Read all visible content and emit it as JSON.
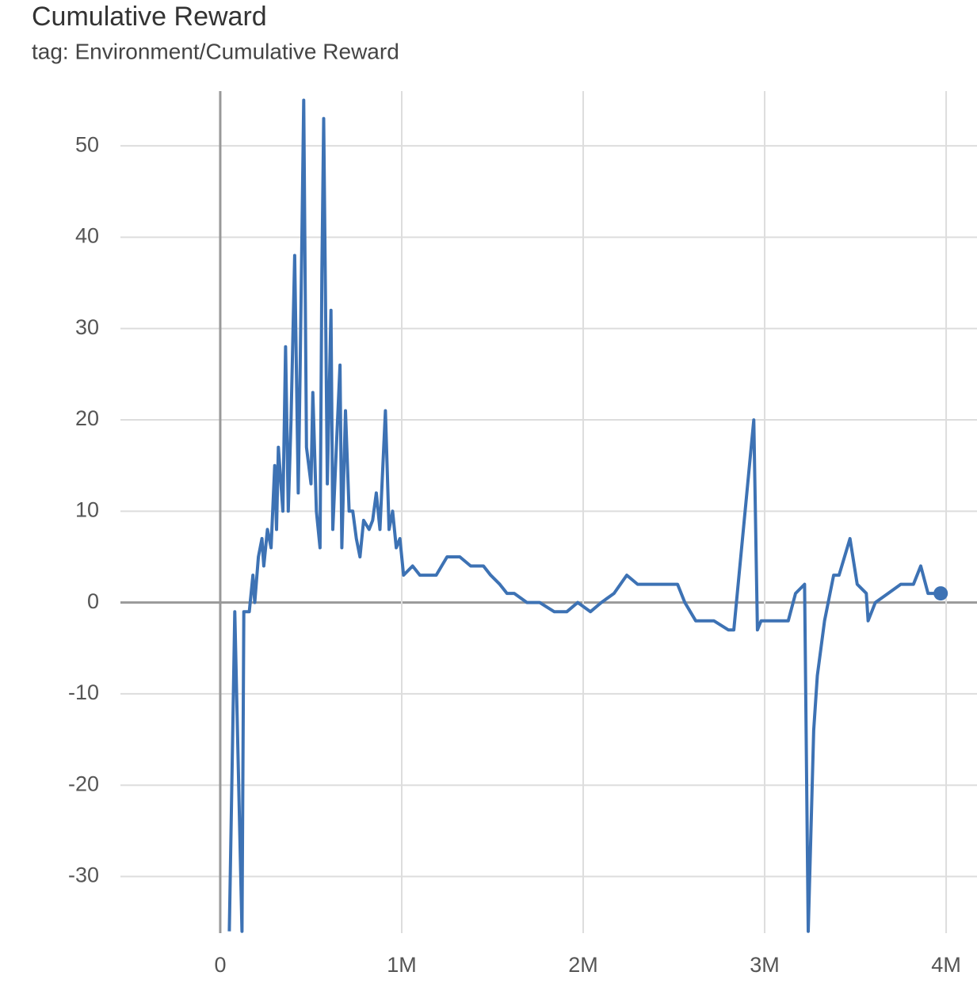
{
  "chart_data": {
    "type": "line",
    "title": "Cumulative Reward",
    "subtitle": "tag: Environment/Cumulative Reward",
    "x": [
      50000,
      80000,
      120000,
      130000,
      160000,
      180000,
      190000,
      210000,
      230000,
      240000,
      260000,
      280000,
      300000,
      310000,
      320000,
      345000,
      360000,
      375000,
      390000,
      410000,
      430000,
      440000,
      460000,
      475000,
      500000,
      510000,
      530000,
      550000,
      560000,
      570000,
      590000,
      610000,
      620000,
      640000,
      660000,
      670000,
      690000,
      710000,
      730000,
      750000,
      770000,
      790000,
      820000,
      840000,
      860000,
      880000,
      910000,
      930000,
      950000,
      970000,
      990000,
      1010000,
      1060000,
      1100000,
      1140000,
      1190000,
      1250000,
      1320000,
      1380000,
      1450000,
      1490000,
      1540000,
      1580000,
      1620000,
      1690000,
      1760000,
      1840000,
      1910000,
      1970000,
      2040000,
      2100000,
      2170000,
      2240000,
      2300000,
      2370000,
      2450000,
      2520000,
      2560000,
      2620000,
      2720000,
      2800000,
      2830000,
      2940000,
      2960000,
      2980000,
      3040000,
      3130000,
      3170000,
      3220000,
      3240000,
      3270000,
      3290000,
      3330000,
      3350000,
      3380000,
      3410000,
      3440000,
      3470000,
      3510000,
      3560000,
      3570000,
      3610000,
      3680000,
      3750000,
      3820000,
      3860000,
      3900000,
      3970000
    ],
    "series": [
      {
        "color": "#3d72b4",
        "values": [
          -36,
          -1,
          -36,
          -1,
          -1,
          3,
          0,
          5,
          7,
          4,
          8,
          6,
          15,
          8,
          17,
          10,
          28,
          10,
          20,
          38,
          12,
          25,
          55,
          17,
          13,
          23,
          10,
          6,
          36,
          53,
          13,
          32,
          8,
          17,
          26,
          6,
          21,
          10,
          10,
          7,
          5,
          9,
          8,
          9,
          12,
          8,
          21,
          8,
          10,
          6,
          7,
          3,
          4,
          3,
          3,
          3,
          5,
          5,
          4,
          4,
          3,
          2,
          1,
          1,
          0,
          0,
          -1,
          -1,
          0,
          -1,
          0,
          1,
          3,
          2,
          2,
          2,
          2,
          0,
          -2,
          -2,
          -3,
          -3,
          20,
          -3,
          -2,
          -2,
          -2,
          1,
          2,
          -36,
          -14,
          -8,
          -2,
          0,
          3,
          3,
          5,
          7,
          2,
          1,
          -2,
          0,
          1,
          2,
          2,
          4,
          1,
          1
        ]
      }
    ],
    "xlim": [
      -550000,
      4170000
    ],
    "ylim": [
      -36.2,
      56
    ],
    "xticks": [
      0,
      {
        "value": 1000000,
        "label": "1M"
      },
      {
        "value": 2000000,
        "label": "2M"
      },
      {
        "value": 3000000,
        "label": "3M"
      },
      {
        "value": 4000000,
        "label": "4M"
      }
    ],
    "yticks": [
      -30,
      -20,
      -10,
      0,
      10,
      20,
      30,
      40,
      50
    ],
    "grid": true
  }
}
